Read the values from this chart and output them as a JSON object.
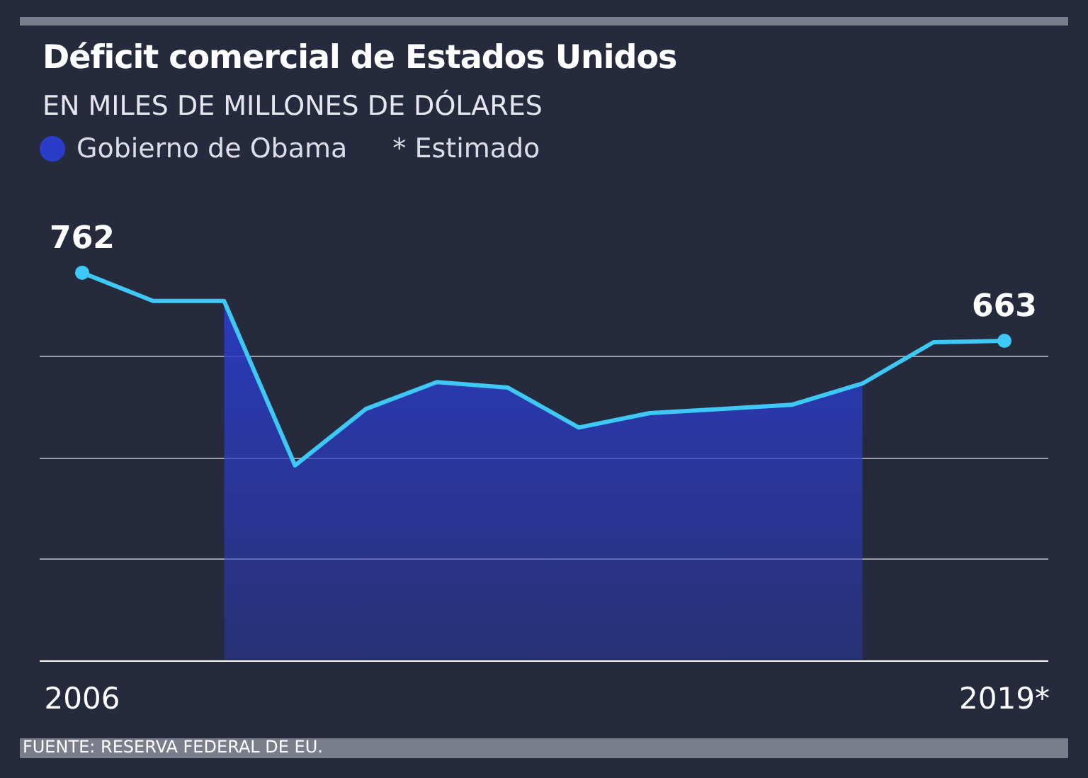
{
  "chart_data": {
    "type": "line",
    "title": "Déficit comercial de Estados Unidos",
    "subtitle": "EN MILES DE MILLONES DE DÓLARES",
    "categories": [
      "2006",
      null,
      null,
      null,
      null,
      null,
      null,
      null,
      null,
      null,
      null,
      null,
      null,
      "2019*"
    ],
    "series": [
      {
        "color": "#3ec8f5",
        "values": [
          762,
          721,
          721,
          482,
          564,
          603,
          595,
          537,
          558,
          564,
          570,
          601,
          661,
          663
        ],
        "value_labels": [
          "762",
          null,
          null,
          null,
          null,
          null,
          null,
          null,
          null,
          null,
          null,
          null,
          null,
          "663"
        ]
      },
      {
        "type": "area",
        "name": "Gobierno de Obama",
        "color": "#2b3cc8",
        "values": [
          null,
          null,
          721,
          482,
          564,
          603,
          595,
          537,
          558,
          564,
          570,
          601,
          null,
          null
        ]
      }
    ],
    "ref_lines": [
      {
        "axis": "y",
        "value": 199,
        "color": "#ffffff"
      }
    ],
    "yticks": [
      {
        "value": 347,
        "label": null
      },
      {
        "value": 494,
        "label": null
      },
      {
        "value": 642,
        "label": null
      }
    ],
    "grid": "y",
    "tick_labels": "x",
    "legend": "top left",
    "annotations": [
      "* Estimado",
      "FUENTE: RESERVA FEDERAL DE EU."
    ]
  }
}
